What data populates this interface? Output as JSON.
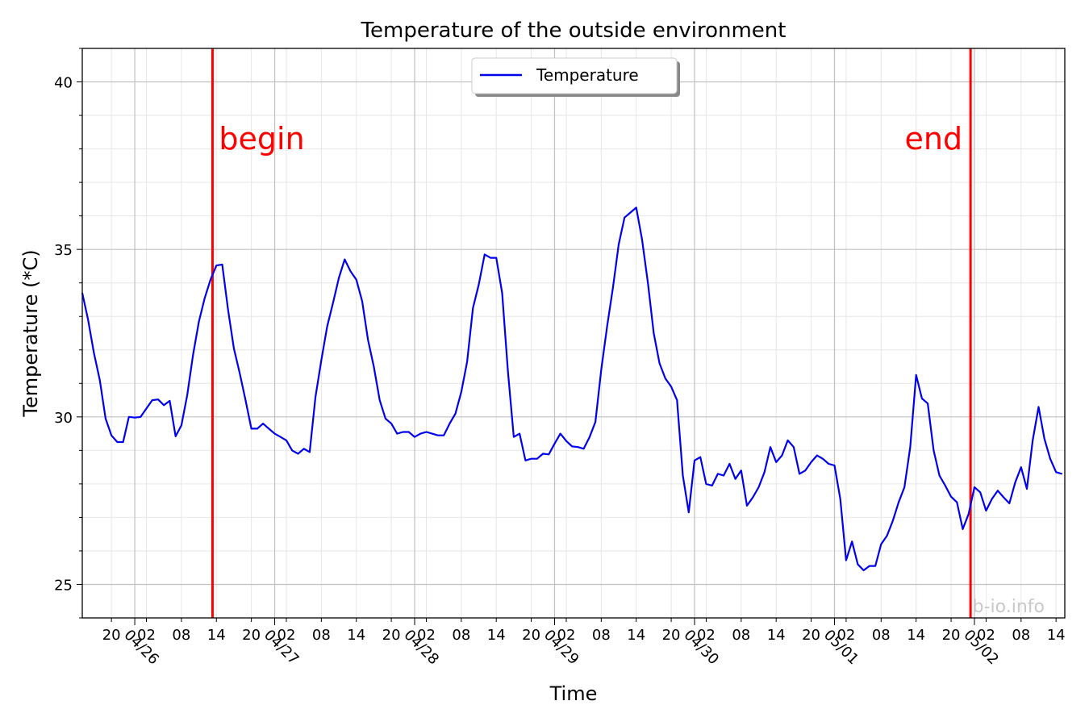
{
  "chart_data": {
    "type": "line",
    "title": "Temperature of the outside environment",
    "xlabel": "Time",
    "ylabel": "Temperature (*C)",
    "ylim": [
      24,
      41
    ],
    "xlim": [
      "2016-04-25 15:00",
      "2016-05-02 15:30"
    ],
    "yticks": [
      25,
      30,
      35,
      40
    ],
    "grid": true,
    "legend": {
      "entries": [
        "Temperature"
      ],
      "placement": "top-center"
    },
    "watermark": "b-io.info",
    "x_hour_ticks": [
      {
        "t": "2016-04-25 20:00",
        "label": "20"
      },
      {
        "t": "2016-04-26 02:00",
        "label": "02"
      },
      {
        "t": "2016-04-26 08:00",
        "label": "08"
      },
      {
        "t": "2016-04-26 14:00",
        "label": "14"
      },
      {
        "t": "2016-04-26 20:00",
        "label": "20"
      },
      {
        "t": "2016-04-27 02:00",
        "label": "02"
      },
      {
        "t": "2016-04-27 08:00",
        "label": "08"
      },
      {
        "t": "2016-04-27 14:00",
        "label": "14"
      },
      {
        "t": "2016-04-27 20:00",
        "label": "20"
      },
      {
        "t": "2016-04-28 02:00",
        "label": "02"
      },
      {
        "t": "2016-04-28 08:00",
        "label": "08"
      },
      {
        "t": "2016-04-28 14:00",
        "label": "14"
      },
      {
        "t": "2016-04-28 20:00",
        "label": "20"
      },
      {
        "t": "2016-04-29 02:00",
        "label": "02"
      },
      {
        "t": "2016-04-29 08:00",
        "label": "08"
      },
      {
        "t": "2016-04-29 14:00",
        "label": "14"
      },
      {
        "t": "2016-04-29 20:00",
        "label": "20"
      },
      {
        "t": "2016-04-30 02:00",
        "label": "02"
      },
      {
        "t": "2016-04-30 08:00",
        "label": "08"
      },
      {
        "t": "2016-04-30 14:00",
        "label": "14"
      },
      {
        "t": "2016-04-30 20:00",
        "label": "20"
      },
      {
        "t": "2016-05-01 02:00",
        "label": "02"
      },
      {
        "t": "2016-05-01 08:00",
        "label": "08"
      },
      {
        "t": "2016-05-01 14:00",
        "label": "14"
      },
      {
        "t": "2016-05-01 20:00",
        "label": "20"
      },
      {
        "t": "2016-05-02 02:00",
        "label": "02"
      },
      {
        "t": "2016-05-02 08:00",
        "label": "08"
      },
      {
        "t": "2016-05-02 14:00",
        "label": "14"
      }
    ],
    "x_day_ticks": [
      {
        "t": "2016-04-26 00:00",
        "label": "04/26"
      },
      {
        "t": "2016-04-27 00:00",
        "label": "04/27"
      },
      {
        "t": "2016-04-28 00:00",
        "label": "04/28"
      },
      {
        "t": "2016-04-29 00:00",
        "label": "04/29"
      },
      {
        "t": "2016-04-30 00:00",
        "label": "04/30"
      },
      {
        "t": "2016-05-01 00:00",
        "label": "05/01"
      },
      {
        "t": "2016-05-02 00:00",
        "label": "05/02"
      }
    ],
    "markers": [
      {
        "label": "begin",
        "t": "2016-04-26 13:20",
        "color": "#ff0000"
      },
      {
        "label": "end",
        "t": "2016-05-01 23:20",
        "color": "#ff0000"
      }
    ],
    "series": [
      {
        "name": "Temperature",
        "color": "#0000ee",
        "x": [
          "2016-04-25 15:00",
          "2016-04-25 16:00",
          "2016-04-25 17:00",
          "2016-04-25 18:00",
          "2016-04-25 19:00",
          "2016-04-25 20:00",
          "2016-04-25 21:00",
          "2016-04-25 22:00",
          "2016-04-25 23:00",
          "2016-04-26 00:00",
          "2016-04-26 01:00",
          "2016-04-26 02:00",
          "2016-04-26 03:00",
          "2016-04-26 04:00",
          "2016-04-26 05:00",
          "2016-04-26 06:00",
          "2016-04-26 07:00",
          "2016-04-26 08:00",
          "2016-04-26 09:00",
          "2016-04-26 10:00",
          "2016-04-26 11:00",
          "2016-04-26 12:00",
          "2016-04-26 13:00",
          "2016-04-26 14:00",
          "2016-04-26 15:00",
          "2016-04-26 16:00",
          "2016-04-26 17:00",
          "2016-04-26 18:00",
          "2016-04-26 19:00",
          "2016-04-26 20:00",
          "2016-04-26 21:00",
          "2016-04-26 22:00",
          "2016-04-26 23:00",
          "2016-04-27 00:00",
          "2016-04-27 01:00",
          "2016-04-27 02:00",
          "2016-04-27 03:00",
          "2016-04-27 04:00",
          "2016-04-27 05:00",
          "2016-04-27 06:00",
          "2016-04-27 07:00",
          "2016-04-27 08:00",
          "2016-04-27 09:00",
          "2016-04-27 10:00",
          "2016-04-27 11:00",
          "2016-04-27 12:00",
          "2016-04-27 13:00",
          "2016-04-27 14:00",
          "2016-04-27 15:00",
          "2016-04-27 16:00",
          "2016-04-27 17:00",
          "2016-04-27 18:00",
          "2016-04-27 19:00",
          "2016-04-27 20:00",
          "2016-04-27 21:00",
          "2016-04-27 22:00",
          "2016-04-27 23:00",
          "2016-04-28 00:00",
          "2016-04-28 01:00",
          "2016-04-28 02:00",
          "2016-04-28 03:00",
          "2016-04-28 04:00",
          "2016-04-28 05:00",
          "2016-04-28 06:00",
          "2016-04-28 07:00",
          "2016-04-28 08:00",
          "2016-04-28 09:00",
          "2016-04-28 10:00",
          "2016-04-28 11:00",
          "2016-04-28 12:00",
          "2016-04-28 13:00",
          "2016-04-28 14:00",
          "2016-04-28 15:00",
          "2016-04-28 16:00",
          "2016-04-28 17:00",
          "2016-04-28 18:00",
          "2016-04-28 19:00",
          "2016-04-28 20:00",
          "2016-04-28 21:00",
          "2016-04-28 22:00",
          "2016-04-28 23:00",
          "2016-04-29 00:00",
          "2016-04-29 01:00",
          "2016-04-29 02:00",
          "2016-04-29 03:00",
          "2016-04-29 04:00",
          "2016-04-29 05:00",
          "2016-04-29 06:00",
          "2016-04-29 07:00",
          "2016-04-29 08:00",
          "2016-04-29 09:00",
          "2016-04-29 10:00",
          "2016-04-29 11:00",
          "2016-04-29 12:00",
          "2016-04-29 13:00",
          "2016-04-29 14:00",
          "2016-04-29 15:00",
          "2016-04-29 16:00",
          "2016-04-29 17:00",
          "2016-04-29 18:00",
          "2016-04-29 19:00",
          "2016-04-29 20:00",
          "2016-04-29 21:00",
          "2016-04-29 22:00",
          "2016-04-29 23:00",
          "2016-04-30 00:00",
          "2016-04-30 01:00",
          "2016-04-30 02:00",
          "2016-04-30 03:00",
          "2016-04-30 04:00",
          "2016-04-30 05:00",
          "2016-04-30 06:00",
          "2016-04-30 07:00",
          "2016-04-30 08:00",
          "2016-04-30 09:00",
          "2016-04-30 10:00",
          "2016-04-30 11:00",
          "2016-04-30 12:00",
          "2016-04-30 13:00",
          "2016-04-30 14:00",
          "2016-04-30 15:00",
          "2016-04-30 16:00",
          "2016-04-30 17:00",
          "2016-04-30 18:00",
          "2016-04-30 19:00",
          "2016-04-30 20:00",
          "2016-04-30 21:00",
          "2016-04-30 22:00",
          "2016-04-30 23:00",
          "2016-05-01 00:00",
          "2016-05-01 01:00",
          "2016-05-01 02:00",
          "2016-05-01 03:00",
          "2016-05-01 04:00",
          "2016-05-01 05:00",
          "2016-05-01 06:00",
          "2016-05-01 07:00",
          "2016-05-01 08:00",
          "2016-05-01 09:00",
          "2016-05-01 10:00",
          "2016-05-01 11:00",
          "2016-05-01 12:00",
          "2016-05-01 13:00",
          "2016-05-01 14:00",
          "2016-05-01 15:00",
          "2016-05-01 16:00",
          "2016-05-01 17:00",
          "2016-05-01 18:00",
          "2016-05-01 19:00",
          "2016-05-01 20:00",
          "2016-05-01 21:00",
          "2016-05-01 22:00",
          "2016-05-01 23:00",
          "2016-05-02 00:00",
          "2016-05-02 01:00",
          "2016-05-02 02:00",
          "2016-05-02 03:00",
          "2016-05-02 04:00",
          "2016-05-02 05:00",
          "2016-05-02 06:00",
          "2016-05-02 07:00",
          "2016-05-02 08:00",
          "2016-05-02 09:00",
          "2016-05-02 10:00",
          "2016-05-02 11:00",
          "2016-05-02 12:00",
          "2016-05-02 13:00",
          "2016-05-02 14:00",
          "2016-05-02 15:00"
        ],
        "y": [
          33.7,
          32.9,
          31.9,
          31.1,
          29.95,
          29.45,
          29.25,
          29.25,
          30.0,
          29.98,
          30.0,
          30.25,
          30.5,
          30.52,
          30.35,
          30.48,
          29.42,
          29.75,
          30.65,
          31.85,
          32.85,
          33.55,
          34.1,
          34.52,
          34.55,
          33.2,
          32.05,
          31.3,
          30.5,
          29.65,
          29.65,
          29.8,
          29.65,
          29.5,
          29.4,
          29.3,
          29.0,
          28.9,
          29.05,
          28.95,
          30.6,
          31.7,
          32.7,
          33.4,
          34.15,
          34.7,
          34.35,
          34.1,
          33.45,
          32.3,
          31.5,
          30.5,
          29.95,
          29.8,
          29.5,
          29.55,
          29.55,
          29.4,
          29.5,
          29.55,
          29.5,
          29.45,
          29.45,
          29.8,
          30.1,
          30.75,
          31.65,
          33.25,
          33.95,
          34.85,
          34.75,
          34.75,
          33.7,
          31.35,
          29.4,
          29.5,
          28.7,
          28.75,
          28.75,
          28.9,
          28.88,
          29.2,
          29.5,
          29.28,
          29.12,
          29.1,
          29.05,
          29.4,
          29.85,
          31.4,
          32.7,
          33.85,
          35.15,
          35.95,
          36.1,
          36.25,
          35.3,
          34.0,
          32.5,
          31.6,
          31.15,
          30.9,
          30.5,
          28.25,
          27.15,
          28.7,
          28.8,
          28.0,
          27.95,
          28.3,
          28.25,
          28.6,
          28.15,
          28.4,
          27.35,
          27.6,
          27.9,
          28.35,
          29.1,
          28.65,
          28.85,
          29.3,
          29.1,
          28.3,
          28.4,
          28.65,
          28.85,
          28.75,
          28.6,
          28.55,
          27.55,
          25.72,
          26.28,
          25.6,
          25.42,
          25.55,
          25.55,
          26.2,
          26.45,
          26.9,
          27.45,
          27.9,
          29.1,
          31.25,
          30.55,
          30.4,
          29.0,
          28.25,
          27.95,
          27.62,
          27.45,
          26.65,
          27.1,
          27.9,
          27.75,
          27.2,
          27.55,
          27.8,
          27.6,
          27.42,
          28.05,
          28.5,
          27.85,
          29.3,
          30.3,
          29.35,
          28.75,
          28.35,
          28.3
        ]
      }
    ]
  }
}
